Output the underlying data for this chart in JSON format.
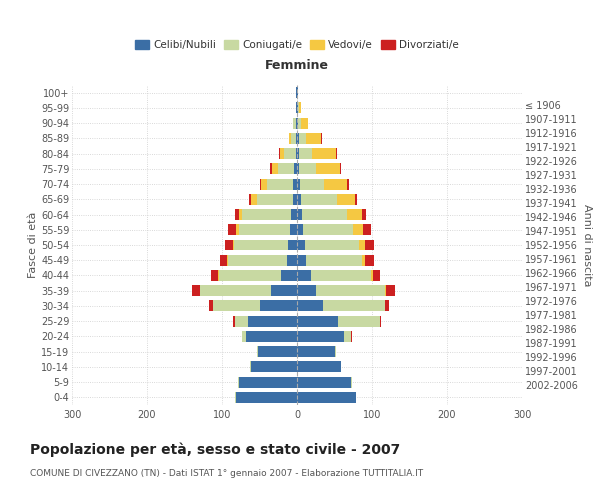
{
  "age_groups": [
    "0-4",
    "5-9",
    "10-14",
    "15-19",
    "20-24",
    "25-29",
    "30-34",
    "35-39",
    "40-44",
    "45-49",
    "50-54",
    "55-59",
    "60-64",
    "65-69",
    "70-74",
    "75-79",
    "80-84",
    "85-89",
    "90-94",
    "95-99",
    "100+"
  ],
  "birth_years": [
    "2002-2006",
    "1997-2001",
    "1992-1996",
    "1987-1991",
    "1982-1986",
    "1977-1981",
    "1972-1976",
    "1967-1971",
    "1962-1966",
    "1957-1961",
    "1952-1956",
    "1947-1951",
    "1942-1946",
    "1937-1941",
    "1932-1936",
    "1927-1931",
    "1922-1926",
    "1917-1921",
    "1912-1916",
    "1907-1911",
    "≤ 1906"
  ],
  "male_celibi": [
    82,
    78,
    62,
    52,
    68,
    65,
    50,
    35,
    22,
    14,
    12,
    10,
    8,
    6,
    5,
    4,
    2,
    2,
    1,
    1,
    1
  ],
  "male_coniugati": [
    1,
    1,
    1,
    2,
    5,
    18,
    62,
    95,
    82,
    78,
    72,
    68,
    65,
    48,
    35,
    22,
    15,
    6,
    4,
    1,
    0
  ],
  "male_vedovi": [
    0,
    0,
    0,
    0,
    0,
    0,
    0,
    0,
    1,
    1,
    2,
    4,
    5,
    7,
    8,
    8,
    6,
    3,
    1,
    0,
    0
  ],
  "male_divorziati": [
    0,
    0,
    0,
    0,
    1,
    2,
    6,
    10,
    10,
    10,
    10,
    10,
    5,
    3,
    2,
    2,
    1,
    0,
    0,
    0,
    0
  ],
  "female_nubili": [
    78,
    72,
    58,
    50,
    62,
    55,
    35,
    25,
    18,
    12,
    10,
    8,
    6,
    5,
    4,
    3,
    2,
    2,
    1,
    1,
    1
  ],
  "female_coniugate": [
    1,
    1,
    1,
    2,
    10,
    55,
    82,
    92,
    80,
    74,
    72,
    66,
    60,
    48,
    32,
    22,
    18,
    10,
    4,
    1,
    0
  ],
  "female_vedove": [
    0,
    0,
    0,
    0,
    0,
    0,
    0,
    1,
    3,
    5,
    8,
    14,
    20,
    24,
    30,
    32,
    32,
    20,
    10,
    3,
    0
  ],
  "female_divorziate": [
    0,
    0,
    0,
    0,
    1,
    2,
    6,
    12,
    10,
    12,
    12,
    10,
    6,
    3,
    3,
    2,
    1,
    1,
    0,
    0,
    0
  ],
  "colors": {
    "celibi_nubili": "#3B6EA5",
    "coniugati": "#C8D9A2",
    "vedovi": "#F5C842",
    "divorziati": "#CC2020"
  },
  "title": "Popolazione per età, sesso e stato civile - 2007",
  "subtitle": "COMUNE DI CIVEZZANO (TN) - Dati ISTAT 1° gennaio 2007 - Elaborazione TUTTITALIA.IT",
  "xlabel_right": "Femmine",
  "ylabel_left": "Fasce di età",
  "ylabel_right": "Anni di nascita",
  "xlim": 300,
  "background_color": "#ffffff",
  "grid_color": "#cccccc"
}
